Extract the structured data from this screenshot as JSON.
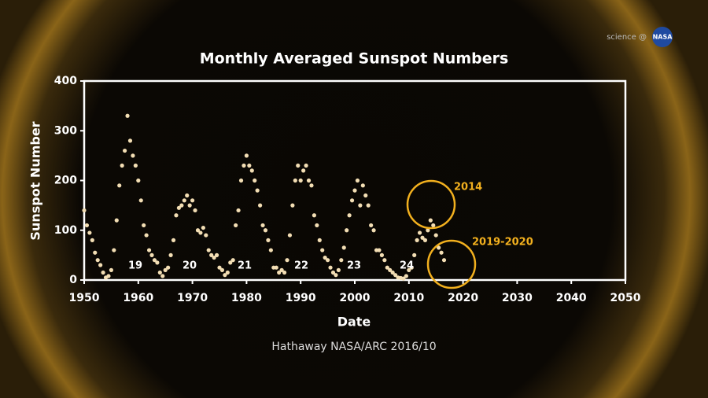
{
  "chart_data": {
    "type": "scatter",
    "title": "Monthly Averaged Sunspot Numbers",
    "x_label": "Date",
    "y_label": "Sunspot Number",
    "credit": "Hathaway NASA/ARC 2016/10",
    "logo": [
      "science @",
      "NASA"
    ],
    "cycle_labels": [
      "19",
      "20",
      "21",
      "22",
      "23",
      "24"
    ],
    "circle_labels": [
      "2014",
      "2019-2020"
    ],
    "color": "#f3deb4",
    "circle_color": "#f2b01e",
    "xlim": [
      1950,
      2050
    ],
    "xticks": [
      1950,
      1960,
      1970,
      1980,
      1990,
      2000,
      2010,
      2020,
      2030,
      2040,
      2050
    ],
    "ylim": [
      0,
      400
    ],
    "yticks": [
      0,
      100,
      200,
      300,
      400
    ],
    "x": [
      1950,
      1950.5,
      1951,
      1951.5,
      1952,
      1952.5,
      1953,
      1953.5,
      1954,
      1954.5,
      1955,
      1955.5,
      1956,
      1956.5,
      1957,
      1957.5,
      1958,
      1958.5,
      1959,
      1959.5,
      1960,
      1960.5,
      1961,
      1961.5,
      1962,
      1962.5,
      1963,
      1963.5,
      1964,
      1964.5,
      1965,
      1965.5,
      1966,
      1966.5,
      1967,
      1967.5,
      1968,
      1968.5,
      1969,
      1969.5,
      1970,
      1970.5,
      1971,
      1971.5,
      1972,
      1972.5,
      1973,
      1973.5,
      1974,
      1974.5,
      1975,
      1975.5,
      1976,
      1976.5,
      1977,
      1977.5,
      1978,
      1978.5,
      1979,
      1979.5,
      1980,
      1980.5,
      1981,
      1981.5,
      1982,
      1982.5,
      1983,
      1983.5,
      1984,
      1984.5,
      1985,
      1985.5,
      1986,
      1986.5,
      1987,
      1987.5,
      1988,
      1988.5,
      1989,
      1989.5,
      1990,
      1990.5,
      1991,
      1991.5,
      1992,
      1992.5,
      1993,
      1993.5,
      1994,
      1994.5,
      1995,
      1995.5,
      1996,
      1996.5,
      1997,
      1997.5,
      1998,
      1998.5,
      1999,
      1999.5,
      2000,
      2000.5,
      2001,
      2001.5,
      2002,
      2002.5,
      2003,
      2003.5,
      2004,
      2004.5,
      2005,
      2005.5,
      2006,
      2006.5,
      2007,
      2007.5,
      2008,
      2008.5,
      2009,
      2009.5,
      2010,
      2010.5,
      2011,
      2011.5,
      2012,
      2012.5,
      2013,
      2013.5,
      2014,
      2014.5,
      2015,
      2015.5,
      2016,
      2016.5
    ],
    "values": [
      140,
      110,
      95,
      80,
      55,
      40,
      30,
      15,
      5,
      8,
      20,
      60,
      120,
      190,
      230,
      260,
      330,
      280,
      250,
      230,
      200,
      160,
      110,
      90,
      60,
      50,
      40,
      35,
      15,
      8,
      20,
      25,
      50,
      80,
      130,
      145,
      150,
      160,
      170,
      150,
      160,
      140,
      100,
      95,
      105,
      90,
      60,
      50,
      45,
      50,
      25,
      20,
      10,
      15,
      35,
      40,
      110,
      140,
      200,
      230,
      250,
      230,
      220,
      200,
      180,
      150,
      110,
      100,
      80,
      60,
      25,
      25,
      15,
      20,
      15,
      40,
      90,
      150,
      200,
      230,
      200,
      220,
      230,
      200,
      190,
      130,
      110,
      80,
      60,
      45,
      40,
      25,
      15,
      10,
      20,
      40,
      65,
      100,
      130,
      160,
      180,
      200,
      150,
      190,
      170,
      150,
      110,
      100,
      60,
      60,
      50,
      40,
      25,
      20,
      15,
      10,
      5,
      4,
      3,
      8,
      20,
      25,
      50,
      80,
      95,
      85,
      80,
      100,
      120,
      110,
      90,
      65,
      55,
      40
    ]
  }
}
